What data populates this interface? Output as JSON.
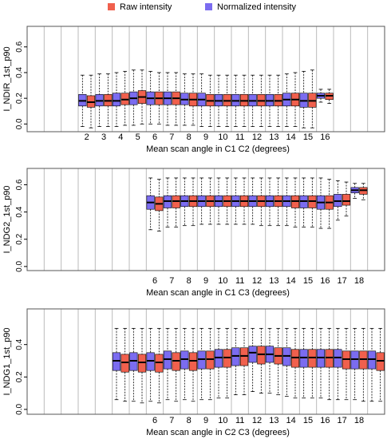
{
  "legend": {
    "items": [
      {
        "label": "Raw intensity",
        "color": "#f0604d"
      },
      {
        "label": "Normalized intensity",
        "color": "#7b6cf0"
      }
    ]
  },
  "colors": {
    "raw": "#f0604d",
    "normalized": "#7b6cf0",
    "grid": "#bbbbbb"
  },
  "chart_data": [
    {
      "type": "boxplot",
      "ylabel": "I_NDIR_1st_p90",
      "xlabel": "Mean scan angle in C1  C2 (degrees)",
      "ylim": [
        -0.06,
        0.76
      ],
      "yticks": [
        "0.0",
        "0.2",
        "0.4",
        "0.6"
      ],
      "xticks": [
        "2",
        "3",
        "4",
        "5",
        "6",
        "7",
        "8",
        "9",
        "10",
        "11",
        "12",
        "13",
        "14",
        "15",
        "16"
      ],
      "boxes": [
        {
          "series": "Normalized intensity",
          "med": 0.18,
          "q1": 0.14,
          "q3": 0.23,
          "lo": -0.02,
          "hi": 0.38
        },
        {
          "series": "Raw intensity",
          "med": 0.17,
          "q1": 0.13,
          "q3": 0.22,
          "lo": -0.03,
          "hi": 0.38
        },
        {
          "series": "Normalized intensity",
          "med": 0.18,
          "q1": 0.14,
          "q3": 0.23,
          "lo": -0.02,
          "hi": 0.39
        },
        {
          "series": "Raw intensity",
          "med": 0.18,
          "q1": 0.14,
          "q3": 0.23,
          "lo": -0.02,
          "hi": 0.39
        },
        {
          "series": "Normalized intensity",
          "med": 0.18,
          "q1": 0.14,
          "q3": 0.24,
          "lo": -0.02,
          "hi": 0.4
        },
        {
          "series": "Raw intensity",
          "med": 0.19,
          "q1": 0.15,
          "q3": 0.24,
          "lo": -0.01,
          "hi": 0.41
        },
        {
          "series": "Normalized intensity",
          "med": 0.2,
          "q1": 0.15,
          "q3": 0.25,
          "lo": -0.01,
          "hi": 0.42
        },
        {
          "series": "Raw intensity",
          "med": 0.21,
          "q1": 0.16,
          "q3": 0.26,
          "lo": 0.0,
          "hi": 0.42
        },
        {
          "series": "Normalized intensity",
          "med": 0.2,
          "q1": 0.15,
          "q3": 0.25,
          "lo": 0.0,
          "hi": 0.41
        },
        {
          "series": "Raw intensity",
          "med": 0.2,
          "q1": 0.15,
          "q3": 0.25,
          "lo": 0.0,
          "hi": 0.4
        },
        {
          "series": "Normalized intensity",
          "med": 0.2,
          "q1": 0.15,
          "q3": 0.25,
          "lo": -0.01,
          "hi": 0.4
        },
        {
          "series": "Raw intensity",
          "med": 0.2,
          "q1": 0.15,
          "q3": 0.25,
          "lo": -0.01,
          "hi": 0.4
        },
        {
          "series": "Normalized intensity",
          "med": 0.19,
          "q1": 0.15,
          "q3": 0.24,
          "lo": -0.01,
          "hi": 0.39
        },
        {
          "series": "Raw intensity",
          "med": 0.19,
          "q1": 0.14,
          "q3": 0.24,
          "lo": -0.01,
          "hi": 0.39
        },
        {
          "series": "Normalized intensity",
          "med": 0.19,
          "q1": 0.14,
          "q3": 0.24,
          "lo": -0.02,
          "hi": 0.39
        },
        {
          "series": "Raw intensity",
          "med": 0.18,
          "q1": 0.14,
          "q3": 0.23,
          "lo": -0.02,
          "hi": 0.38
        },
        {
          "series": "Normalized intensity",
          "med": 0.18,
          "q1": 0.14,
          "q3": 0.23,
          "lo": -0.02,
          "hi": 0.38
        },
        {
          "series": "Raw intensity",
          "med": 0.18,
          "q1": 0.14,
          "q3": 0.23,
          "lo": -0.02,
          "hi": 0.38
        },
        {
          "series": "Normalized intensity",
          "med": 0.18,
          "q1": 0.14,
          "q3": 0.23,
          "lo": -0.02,
          "hi": 0.38
        },
        {
          "series": "Raw intensity",
          "med": 0.18,
          "q1": 0.14,
          "q3": 0.23,
          "lo": -0.02,
          "hi": 0.38
        },
        {
          "series": "Normalized intensity",
          "med": 0.18,
          "q1": 0.14,
          "q3": 0.23,
          "lo": -0.02,
          "hi": 0.38
        },
        {
          "series": "Raw intensity",
          "med": 0.18,
          "q1": 0.14,
          "q3": 0.23,
          "lo": -0.02,
          "hi": 0.38
        },
        {
          "series": "Normalized intensity",
          "med": 0.18,
          "q1": 0.14,
          "q3": 0.23,
          "lo": -0.02,
          "hi": 0.38
        },
        {
          "series": "Raw intensity",
          "med": 0.18,
          "q1": 0.14,
          "q3": 0.23,
          "lo": -0.02,
          "hi": 0.38
        },
        {
          "series": "Normalized intensity",
          "med": 0.19,
          "q1": 0.14,
          "q3": 0.24,
          "lo": -0.02,
          "hi": 0.39
        },
        {
          "series": "Raw intensity",
          "med": 0.19,
          "q1": 0.14,
          "q3": 0.24,
          "lo": -0.02,
          "hi": 0.4
        },
        {
          "series": "Normalized intensity",
          "med": 0.18,
          "q1": 0.13,
          "q3": 0.24,
          "lo": -0.03,
          "hi": 0.41
        },
        {
          "series": "Raw intensity",
          "med": 0.18,
          "q1": 0.13,
          "q3": 0.24,
          "lo": -0.03,
          "hi": 0.42
        },
        {
          "series": "Normalized intensity",
          "med": 0.22,
          "q1": 0.2,
          "q3": 0.24,
          "lo": 0.17,
          "hi": 0.27
        },
        {
          "series": "Raw intensity",
          "med": 0.22,
          "q1": 0.19,
          "q3": 0.24,
          "lo": 0.16,
          "hi": 0.27
        }
      ]
    },
    {
      "type": "boxplot",
      "ylabel": "I_NDG2_1st_p90",
      "xlabel": "Mean scan angle in C1  C3 (degrees)",
      "ylim": [
        -0.03,
        0.72
      ],
      "yticks": [
        "0.0",
        "0.2",
        "0.4",
        "0.6"
      ],
      "xticks": [
        "6",
        "7",
        "8",
        "9",
        "10",
        "11",
        "12",
        "13",
        "14",
        "15",
        "16",
        "17",
        "18"
      ],
      "boxes": [
        {
          "series": "Normalized intensity",
          "med": 0.47,
          "q1": 0.42,
          "q3": 0.52,
          "lo": 0.27,
          "hi": 0.65
        },
        {
          "series": "Raw intensity",
          "med": 0.46,
          "q1": 0.41,
          "q3": 0.51,
          "lo": 0.26,
          "hi": 0.64
        },
        {
          "series": "Normalized intensity",
          "med": 0.48,
          "q1": 0.43,
          "q3": 0.52,
          "lo": 0.29,
          "hi": 0.65
        },
        {
          "series": "Raw intensity",
          "med": 0.48,
          "q1": 0.43,
          "q3": 0.52,
          "lo": 0.29,
          "hi": 0.65
        },
        {
          "series": "Normalized intensity",
          "med": 0.48,
          "q1": 0.44,
          "q3": 0.52,
          "lo": 0.3,
          "hi": 0.65
        },
        {
          "series": "Raw intensity",
          "med": 0.48,
          "q1": 0.44,
          "q3": 0.52,
          "lo": 0.3,
          "hi": 0.65
        },
        {
          "series": "Normalized intensity",
          "med": 0.48,
          "q1": 0.44,
          "q3": 0.52,
          "lo": 0.31,
          "hi": 0.65
        },
        {
          "series": "Raw intensity",
          "med": 0.48,
          "q1": 0.44,
          "q3": 0.52,
          "lo": 0.31,
          "hi": 0.65
        },
        {
          "series": "Normalized intensity",
          "med": 0.48,
          "q1": 0.44,
          "q3": 0.52,
          "lo": 0.31,
          "hi": 0.65
        },
        {
          "series": "Raw intensity",
          "med": 0.48,
          "q1": 0.44,
          "q3": 0.52,
          "lo": 0.31,
          "hi": 0.65
        },
        {
          "series": "Normalized intensity",
          "med": 0.48,
          "q1": 0.44,
          "q3": 0.52,
          "lo": 0.31,
          "hi": 0.65
        },
        {
          "series": "Raw intensity",
          "med": 0.48,
          "q1": 0.44,
          "q3": 0.52,
          "lo": 0.31,
          "hi": 0.65
        },
        {
          "series": "Normalized intensity",
          "med": 0.48,
          "q1": 0.44,
          "q3": 0.52,
          "lo": 0.31,
          "hi": 0.65
        },
        {
          "series": "Raw intensity",
          "med": 0.48,
          "q1": 0.44,
          "q3": 0.52,
          "lo": 0.3,
          "hi": 0.65
        },
        {
          "series": "Normalized intensity",
          "med": 0.48,
          "q1": 0.44,
          "q3": 0.52,
          "lo": 0.3,
          "hi": 0.65
        },
        {
          "series": "Raw intensity",
          "med": 0.48,
          "q1": 0.44,
          "q3": 0.52,
          "lo": 0.3,
          "hi": 0.65
        },
        {
          "series": "Normalized intensity",
          "med": 0.48,
          "q1": 0.44,
          "q3": 0.52,
          "lo": 0.3,
          "hi": 0.65
        },
        {
          "series": "Raw intensity",
          "med": 0.48,
          "q1": 0.43,
          "q3": 0.52,
          "lo": 0.29,
          "hi": 0.65
        },
        {
          "series": "Normalized intensity",
          "med": 0.48,
          "q1": 0.43,
          "q3": 0.52,
          "lo": 0.29,
          "hi": 0.65
        },
        {
          "series": "Raw intensity",
          "med": 0.48,
          "q1": 0.43,
          "q3": 0.52,
          "lo": 0.29,
          "hi": 0.65
        },
        {
          "series": "Normalized intensity",
          "med": 0.47,
          "q1": 0.42,
          "q3": 0.52,
          "lo": 0.28,
          "hi": 0.65
        },
        {
          "series": "Raw intensity",
          "med": 0.47,
          "q1": 0.42,
          "q3": 0.52,
          "lo": 0.28,
          "hi": 0.64
        },
        {
          "series": "Normalized intensity",
          "med": 0.48,
          "q1": 0.44,
          "q3": 0.53,
          "lo": 0.34,
          "hi": 0.63
        },
        {
          "series": "Raw intensity",
          "med": 0.48,
          "q1": 0.45,
          "q3": 0.53,
          "lo": 0.37,
          "hi": 0.62
        },
        {
          "series": "Normalized intensity",
          "med": 0.56,
          "q1": 0.54,
          "q3": 0.58,
          "lo": 0.5,
          "hi": 0.61
        },
        {
          "series": "Raw intensity",
          "med": 0.56,
          "q1": 0.53,
          "q3": 0.58,
          "lo": 0.49,
          "hi": 0.61
        }
      ]
    },
    {
      "type": "boxplot",
      "ylabel": "I_NDG1_1st_p90",
      "xlabel": "Mean scan angle in C2  C3 (degrees)",
      "ylim": [
        -0.03,
        0.62
      ],
      "yticks": [
        "0.0",
        "0.2",
        "0.4"
      ],
      "xticks": [
        "6",
        "7",
        "8",
        "9",
        "10",
        "11",
        "12",
        "13",
        "14",
        "15",
        "16",
        "17",
        "18"
      ],
      "boxes": [
        {
          "series": "Normalized intensity",
          "med": 0.3,
          "q1": 0.24,
          "q3": 0.35,
          "lo": 0.06,
          "hi": 0.5
        },
        {
          "series": "Raw intensity",
          "med": 0.29,
          "q1": 0.23,
          "q3": 0.34,
          "lo": 0.05,
          "hi": 0.5
        },
        {
          "series": "Normalized intensity",
          "med": 0.3,
          "q1": 0.24,
          "q3": 0.35,
          "lo": 0.05,
          "hi": 0.5
        },
        {
          "series": "Raw intensity",
          "med": 0.29,
          "q1": 0.23,
          "q3": 0.34,
          "lo": 0.04,
          "hi": 0.5
        },
        {
          "series": "Normalized intensity",
          "med": 0.3,
          "q1": 0.24,
          "q3": 0.35,
          "lo": 0.05,
          "hi": 0.5
        },
        {
          "series": "Raw intensity",
          "med": 0.29,
          "q1": 0.23,
          "q3": 0.34,
          "lo": 0.04,
          "hi": 0.5
        },
        {
          "series": "Normalized intensity",
          "med": 0.31,
          "q1": 0.25,
          "q3": 0.36,
          "lo": 0.06,
          "hi": 0.5
        },
        {
          "series": "Raw intensity",
          "med": 0.3,
          "q1": 0.24,
          "q3": 0.35,
          "lo": 0.05,
          "hi": 0.5
        },
        {
          "series": "Normalized intensity",
          "med": 0.31,
          "q1": 0.25,
          "q3": 0.36,
          "lo": 0.06,
          "hi": 0.5
        },
        {
          "series": "Raw intensity",
          "med": 0.3,
          "q1": 0.24,
          "q3": 0.35,
          "lo": 0.05,
          "hi": 0.5
        },
        {
          "series": "Normalized intensity",
          "med": 0.31,
          "q1": 0.25,
          "q3": 0.36,
          "lo": 0.06,
          "hi": 0.5
        },
        {
          "series": "Raw intensity",
          "med": 0.31,
          "q1": 0.25,
          "q3": 0.36,
          "lo": 0.06,
          "hi": 0.5
        },
        {
          "series": "Normalized intensity",
          "med": 0.32,
          "q1": 0.26,
          "q3": 0.37,
          "lo": 0.07,
          "hi": 0.5
        },
        {
          "series": "Raw intensity",
          "med": 0.32,
          "q1": 0.26,
          "q3": 0.37,
          "lo": 0.07,
          "hi": 0.5
        },
        {
          "series": "Normalized intensity",
          "med": 0.33,
          "q1": 0.27,
          "q3": 0.38,
          "lo": 0.09,
          "hi": 0.5
        },
        {
          "series": "Raw intensity",
          "med": 0.33,
          "q1": 0.27,
          "q3": 0.38,
          "lo": 0.09,
          "hi": 0.5
        },
        {
          "series": "Normalized intensity",
          "med": 0.35,
          "q1": 0.29,
          "q3": 0.39,
          "lo": 0.11,
          "hi": 0.5
        },
        {
          "series": "Raw intensity",
          "med": 0.34,
          "q1": 0.28,
          "q3": 0.39,
          "lo": 0.1,
          "hi": 0.5
        },
        {
          "series": "Normalized intensity",
          "med": 0.34,
          "q1": 0.29,
          "q3": 0.39,
          "lo": 0.1,
          "hi": 0.5
        },
        {
          "series": "Raw intensity",
          "med": 0.33,
          "q1": 0.28,
          "q3": 0.38,
          "lo": 0.09,
          "hi": 0.5
        },
        {
          "series": "Normalized intensity",
          "med": 0.33,
          "q1": 0.27,
          "q3": 0.38,
          "lo": 0.08,
          "hi": 0.5
        },
        {
          "series": "Raw intensity",
          "med": 0.32,
          "q1": 0.26,
          "q3": 0.37,
          "lo": 0.07,
          "hi": 0.5
        },
        {
          "series": "Normalized intensity",
          "med": 0.32,
          "q1": 0.26,
          "q3": 0.37,
          "lo": 0.07,
          "hi": 0.5
        },
        {
          "series": "Raw intensity",
          "med": 0.32,
          "q1": 0.26,
          "q3": 0.37,
          "lo": 0.07,
          "hi": 0.5
        },
        {
          "series": "Normalized intensity",
          "med": 0.32,
          "q1": 0.26,
          "q3": 0.37,
          "lo": 0.07,
          "hi": 0.5
        },
        {
          "series": "Raw intensity",
          "med": 0.32,
          "q1": 0.26,
          "q3": 0.37,
          "lo": 0.06,
          "hi": 0.5
        },
        {
          "series": "Normalized intensity",
          "med": 0.32,
          "q1": 0.26,
          "q3": 0.37,
          "lo": 0.06,
          "hi": 0.5
        },
        {
          "series": "Raw intensity",
          "med": 0.31,
          "q1": 0.25,
          "q3": 0.36,
          "lo": 0.06,
          "hi": 0.5
        },
        {
          "series": "Normalized intensity",
          "med": 0.31,
          "q1": 0.25,
          "q3": 0.36,
          "lo": 0.06,
          "hi": 0.5
        },
        {
          "series": "Raw intensity",
          "med": 0.31,
          "q1": 0.25,
          "q3": 0.36,
          "lo": 0.05,
          "hi": 0.5
        },
        {
          "series": "Normalized intensity",
          "med": 0.31,
          "q1": 0.25,
          "q3": 0.36,
          "lo": 0.05,
          "hi": 0.5
        },
        {
          "series": "Raw intensity",
          "med": 0.3,
          "q1": 0.24,
          "q3": 0.35,
          "lo": 0.05,
          "hi": 0.5
        }
      ]
    }
  ]
}
